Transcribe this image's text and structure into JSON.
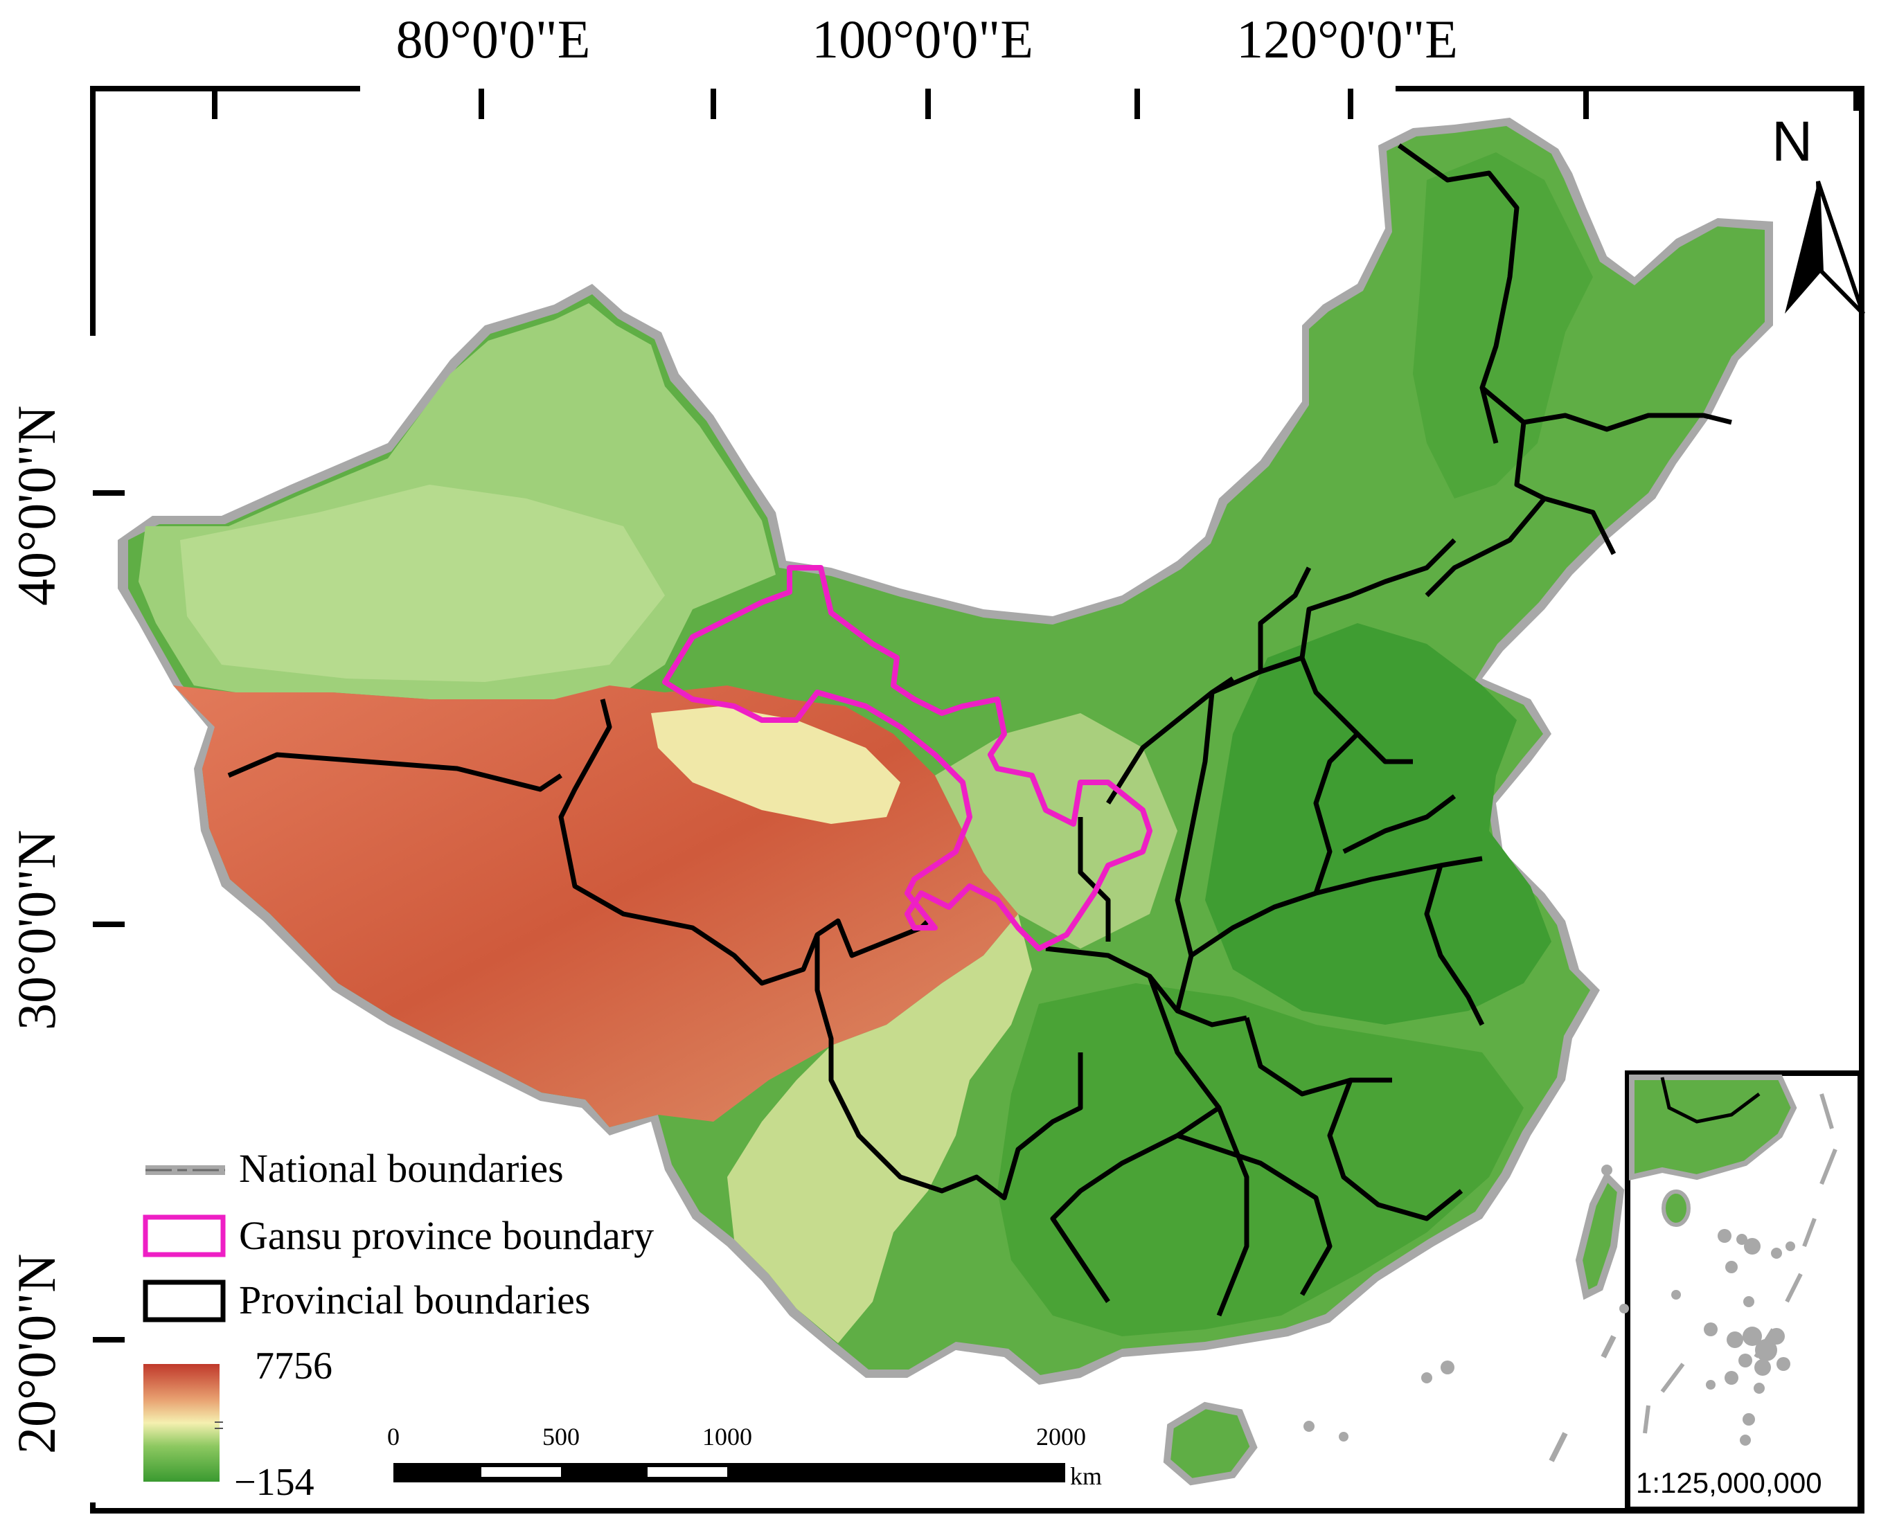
{
  "map": {
    "longitude_labels": [
      "80°0'0\"E",
      "100°0'0\"E",
      "120°0'0\"E"
    ],
    "latitude_labels": [
      "40°0'0\"N",
      "30°0'0\"N",
      "20°0'0\"N"
    ],
    "north_label": "N",
    "inset_scale": "1:125,000,000"
  },
  "legend": {
    "national": "National boundaries",
    "gansu": "Gansu province boundary",
    "provincial": "Provincial boundaries",
    "elevation_max": "7756",
    "elevation_min": "−154",
    "elevation_colors": [
      "#c0392b",
      "#e8a070",
      "#f5f0b0",
      "#8cc860",
      "#3a9a30"
    ]
  },
  "scale_bar": {
    "ticks": [
      "0",
      "500",
      "1000",
      "2000"
    ],
    "unit": "km"
  },
  "colors": {
    "national_boundary": "#9e9e9e",
    "gansu_boundary": "#ee1fc5",
    "provincial_boundary": "#000000",
    "lowland_green": "#3f9d32",
    "plateau_red": "#d4573c"
  }
}
